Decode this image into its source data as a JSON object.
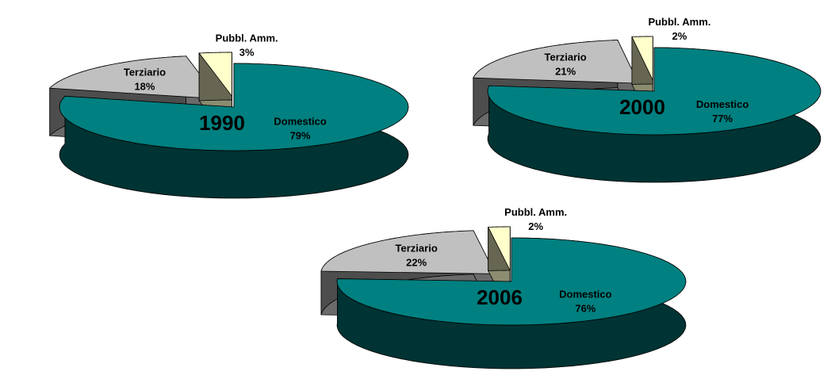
{
  "chart_data": [
    {
      "type": "pie",
      "title": "1990",
      "categories": [
        "Domestico",
        "Terziario",
        "Pubbl. Amm."
      ],
      "values": [
        79,
        18,
        3
      ],
      "value_labels": [
        "79%",
        "18%",
        "3%"
      ],
      "colors": [
        "#008080",
        "#c0c0c0",
        "#ffffcc"
      ]
    },
    {
      "type": "pie",
      "title": "2000",
      "categories": [
        "Domestico",
        "Terziario",
        "Pubbl. Amm."
      ],
      "values": [
        77,
        21,
        2
      ],
      "value_labels": [
        "77%",
        "21%",
        "2%"
      ],
      "colors": [
        "#008080",
        "#c0c0c0",
        "#ffffcc"
      ]
    },
    {
      "type": "pie",
      "title": "2006",
      "categories": [
        "Domestico",
        "Terziario",
        "Pubbl. Amm."
      ],
      "values": [
        76,
        22,
        2
      ],
      "value_labels": [
        "76%",
        "22%",
        "2%"
      ],
      "colors": [
        "#008080",
        "#c0c0c0",
        "#ffffcc"
      ]
    }
  ]
}
